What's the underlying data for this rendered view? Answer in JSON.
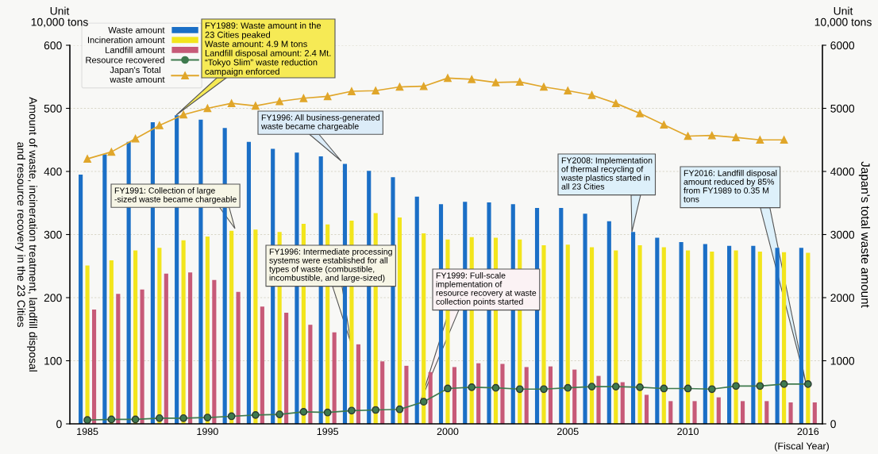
{
  "chart_data": {
    "type": "bar",
    "ylabel": "Amount of waste, incineration treatment, landfill disposal\nand resource recovery in the 23 Cities",
    "y2label": "Japan's total waste amount",
    "categories": [
      "1985",
      null,
      null,
      null,
      null,
      "1990",
      null,
      null,
      null,
      null,
      "1995",
      null,
      null,
      null,
      null,
      "2000",
      null,
      null,
      null,
      null,
      "2005",
      null,
      null,
      null,
      null,
      "2010",
      null,
      null,
      null,
      null,
      "2016"
    ],
    "series": [
      {
        "name": "Waste amount",
        "type": "bar",
        "color": "#1b6fc6",
        "values": [
          395,
          427,
          447,
          478,
          489,
          482,
          469,
          447,
          436,
          430,
          424,
          412,
          401,
          391,
          360,
          348,
          352,
          351,
          348,
          342,
          342,
          333,
          321,
          304,
          295,
          288,
          285,
          282,
          282,
          279,
          279
        ]
      },
      {
        "name": "Incineration amount",
        "type": "bar",
        "color": "#f2e51c",
        "values": [
          251,
          259,
          275,
          279,
          291,
          297,
          306,
          308,
          304,
          317,
          316,
          322,
          334,
          327,
          302,
          292,
          296,
          295,
          292,
          283,
          284,
          280,
          275,
          283,
          280,
          275,
          273,
          275,
          273,
          272,
          271
        ]
      },
      {
        "name": "Landfill amount",
        "type": "bar",
        "color": "#c75a78",
        "values": [
          181,
          206,
          213,
          238,
          240,
          228,
          209,
          186,
          176,
          157,
          145,
          126,
          99,
          92,
          82,
          90,
          96,
          95,
          90,
          91,
          86,
          76,
          66,
          46,
          36,
          36,
          42,
          36,
          36,
          34,
          34
        ]
      },
      {
        "name": "Resource recovered",
        "type": "line",
        "color": "#3f7a4e",
        "marker": "circle",
        "values": [
          6,
          7,
          7,
          9,
          9,
          10,
          12,
          14,
          15,
          19,
          18,
          21,
          22,
          23,
          35,
          56,
          58,
          57,
          55,
          55,
          57,
          59,
          59,
          58,
          56,
          56,
          55,
          60,
          60,
          63,
          63
        ]
      },
      {
        "name": "Japan's Total\nwaste amount",
        "type": "line",
        "axis": "y2",
        "color": "#e0a62a",
        "marker": "triangle",
        "values": [
          4200,
          4310,
          4520,
          4730,
          4900,
          5000,
          5080,
          5040,
          5110,
          5160,
          5190,
          5270,
          5280,
          5340,
          5350,
          5480,
          5460,
          5410,
          5420,
          5340,
          5280,
          5210,
          5080,
          4920,
          4740,
          4560,
          4570,
          4540,
          4500,
          4500,
          null
        ]
      }
    ],
    "ylim": [
      0,
      600
    ],
    "yticks": [
      0,
      100,
      200,
      300,
      400,
      500,
      600
    ],
    "y2lim": [
      0,
      6000
    ],
    "y2ticks": [
      0,
      1000,
      2000,
      3000,
      4000,
      5000,
      6000
    ],
    "grid": "y",
    "legend": "top left",
    "annotations": [
      "Unit\n10,000 tons",
      "Unit\n10,000 tons",
      "(Fiscal Year)",
      "FY1989: Waste amount in the\n23 Cities peaked\nWaste amount: 4.9 M tons\nLandfill disposal amount: 2.4 Mt.\n“Tokyo Slim” waste reduction\ncampaign enforced",
      "FY1996: All business-generated\nwaste became chargeable",
      "FY1991: Collection of large\n-sized waste became chargeable",
      "FY1996: Intermediate processing\nsystems were established for all\ntypes of waste (combustible,\nincombustible, and large-sized)",
      "FY1999: Full-scale\nimplementation of\nresource recovery at waste\ncollection points started",
      "FY2008: Implementation\nof thermal recycling of\nwaste plastics started in\nall 23 Cities",
      "FY2016: Landfill disposal\namount reduced by 85%\nfrom FY1989 to 0.35 M\ntons"
    ]
  }
}
